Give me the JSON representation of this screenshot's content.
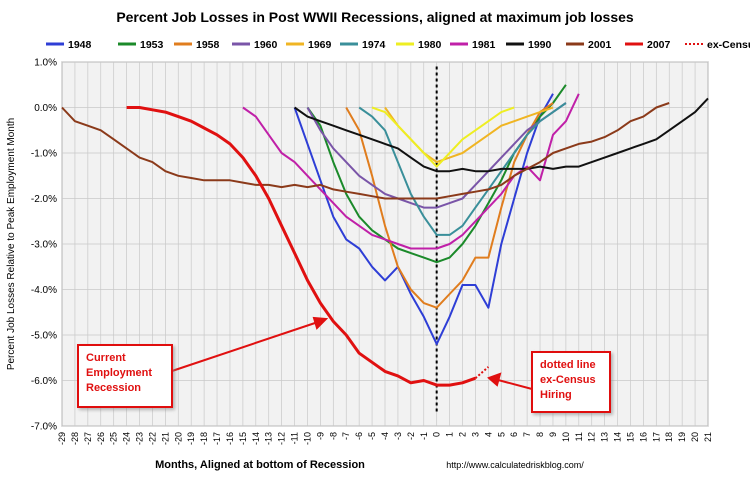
{
  "chart_data": {
    "type": "line",
    "title": "Percent Job Losses in Post WWII Recessions, aligned at maximum job losses",
    "xlabel": "Months, Aligned at bottom of Recession",
    "ylabel": "Percent Job Losses Relative to Peak Employment Month",
    "source": "http://www.calculatedriskblog.com/",
    "xlim": [
      -29,
      21
    ],
    "ylim": [
      -7.0,
      1.0
    ],
    "x_ticks": [
      -29,
      -28,
      -27,
      -26,
      -25,
      -24,
      -23,
      -22,
      -21,
      -20,
      -19,
      -18,
      -17,
      -16,
      -15,
      -14,
      -13,
      -12,
      -11,
      -10,
      -9,
      -8,
      -7,
      -6,
      -5,
      -4,
      -3,
      -2,
      -1,
      0,
      1,
      2,
      3,
      4,
      5,
      6,
      7,
      8,
      9,
      10,
      11,
      12,
      13,
      14,
      15,
      16,
      17,
      18,
      19,
      20,
      21
    ],
    "y_ticks": [
      "1.0%",
      "0.0%",
      "-1.0%",
      "-2.0%",
      "-3.0%",
      "-4.0%",
      "-5.0%",
      "-6.0%",
      "-7.0%"
    ],
    "grid": true,
    "legend_position": "top",
    "reference_line_x": 0,
    "series": [
      {
        "name": "1948",
        "color": "#2e3ed6",
        "x": [
          -11,
          -10,
          -9,
          -8,
          -7,
          -6,
          -5,
          -4,
          -3,
          -2,
          -1,
          0,
          1,
          2,
          3,
          4,
          5,
          6,
          7,
          8,
          9
        ],
        "y": [
          0,
          -0.8,
          -1.6,
          -2.4,
          -2.9,
          -3.1,
          -3.5,
          -3.8,
          -3.5,
          -4.1,
          -4.6,
          -5.2,
          -4.6,
          -3.9,
          -3.9,
          -4.4,
          -3.0,
          -2.0,
          -1.0,
          -0.2,
          0.3
        ]
      },
      {
        "name": "1953",
        "color": "#1b8a2a",
        "x": [
          -10,
          -9,
          -8,
          -7,
          -6,
          -5,
          -4,
          -3,
          -2,
          -1,
          0,
          1,
          2,
          3,
          4,
          5,
          6,
          7,
          8,
          9,
          10
        ],
        "y": [
          0,
          -0.4,
          -1.2,
          -1.9,
          -2.4,
          -2.7,
          -2.9,
          -3.1,
          -3.2,
          -3.3,
          -3.4,
          -3.3,
          -3.0,
          -2.6,
          -2.1,
          -1.6,
          -1.0,
          -0.6,
          -0.2,
          0.1,
          0.5
        ]
      },
      {
        "name": "1958",
        "color": "#e07d1e",
        "x": [
          -7,
          -6,
          -5,
          -4,
          -3,
          -2,
          -1,
          0,
          1,
          2,
          3,
          4,
          5,
          6,
          7,
          8,
          9
        ],
        "y": [
          0,
          -0.5,
          -1.5,
          -2.6,
          -3.5,
          -4.0,
          -4.3,
          -4.4,
          -4.1,
          -3.8,
          -3.3,
          -3.3,
          -2.2,
          -1.2,
          -0.6,
          -0.1,
          0.1
        ]
      },
      {
        "name": "1960",
        "color": "#7a55a8",
        "x": [
          -10,
          -9,
          -8,
          -7,
          -6,
          -5,
          -4,
          -3,
          -2,
          -1,
          0,
          1,
          2,
          3,
          4,
          5,
          6,
          7,
          8,
          9,
          10
        ],
        "y": [
          0,
          -0.5,
          -0.9,
          -1.2,
          -1.5,
          -1.7,
          -1.9,
          -2.0,
          -2.1,
          -2.2,
          -2.2,
          -2.1,
          -2.0,
          -1.7,
          -1.4,
          -1.1,
          -0.8,
          -0.5,
          -0.3,
          -0.1,
          0.1
        ]
      },
      {
        "name": "1969",
        "color": "#f0b523",
        "x": [
          -4,
          -3,
          -2,
          -1,
          0,
          1,
          2,
          3,
          4,
          5,
          6,
          7,
          8,
          9
        ],
        "y": [
          0,
          -0.4,
          -0.7,
          -1.0,
          -1.2,
          -1.1,
          -1.0,
          -0.8,
          -0.6,
          -0.4,
          -0.3,
          -0.2,
          -0.1,
          0.0
        ]
      },
      {
        "name": "1974",
        "color": "#3a8f9a",
        "x": [
          -6,
          -5,
          -4,
          -3,
          -2,
          -1,
          0,
          1,
          2,
          3,
          4,
          5,
          6,
          7,
          8,
          9,
          10
        ],
        "y": [
          0,
          -0.2,
          -0.5,
          -1.2,
          -1.9,
          -2.4,
          -2.8,
          -2.8,
          -2.6,
          -2.2,
          -1.8,
          -1.4,
          -1.0,
          -0.6,
          -0.3,
          -0.1,
          0.1
        ]
      },
      {
        "name": "1980",
        "color": "#eeee22",
        "x": [
          -5,
          -4,
          -3,
          -2,
          -1,
          0,
          1,
          2,
          3,
          4,
          5,
          6
        ],
        "y": [
          0,
          -0.1,
          -0.4,
          -0.7,
          -1.0,
          -1.3,
          -1.0,
          -0.7,
          -0.5,
          -0.3,
          -0.1,
          0.0
        ]
      },
      {
        "name": "1981",
        "color": "#c020a8",
        "x": [
          -15,
          -14,
          -13,
          -12,
          -11,
          -10,
          -9,
          -8,
          -7,
          -6,
          -5,
          -4,
          -3,
          -2,
          -1,
          0,
          1,
          2,
          3,
          4,
          5,
          6,
          7,
          8,
          9,
          10,
          11
        ],
        "y": [
          0,
          -0.2,
          -0.6,
          -1.0,
          -1.2,
          -1.5,
          -1.8,
          -2.1,
          -2.4,
          -2.6,
          -2.8,
          -2.9,
          -3.0,
          -3.1,
          -3.1,
          -3.1,
          -3.0,
          -2.8,
          -2.5,
          -2.2,
          -1.9,
          -1.5,
          -1.3,
          -1.6,
          -0.6,
          -0.3,
          0.3
        ]
      },
      {
        "name": "1990",
        "color": "#111111",
        "x": [
          -11,
          -10,
          -9,
          -8,
          -7,
          -6,
          -5,
          -4,
          -3,
          -2,
          -1,
          0,
          1,
          2,
          3,
          4,
          5,
          6,
          7,
          8,
          9,
          10,
          11,
          12,
          13,
          14,
          15,
          16,
          17,
          18,
          19,
          20,
          21
        ],
        "y": [
          0,
          -0.2,
          -0.3,
          -0.4,
          -0.5,
          -0.6,
          -0.7,
          -0.8,
          -0.9,
          -1.1,
          -1.3,
          -1.4,
          -1.4,
          -1.35,
          -1.4,
          -1.4,
          -1.35,
          -1.35,
          -1.35,
          -1.3,
          -1.35,
          -1.3,
          -1.3,
          -1.2,
          -1.1,
          -1.0,
          -0.9,
          -0.8,
          -0.7,
          -0.5,
          -0.3,
          -0.1,
          0.2
        ]
      },
      {
        "name": "2001",
        "color": "#8b3a1a",
        "x": [
          -29,
          -28,
          -27,
          -26,
          -25,
          -24,
          -23,
          -22,
          -21,
          -20,
          -19,
          -18,
          -17,
          -16,
          -15,
          -14,
          -13,
          -12,
          -11,
          -10,
          -9,
          -8,
          -7,
          -6,
          -5,
          -4,
          -3,
          -2,
          -1,
          0,
          1,
          2,
          3,
          4,
          5,
          6,
          7,
          8,
          9,
          10,
          11,
          12,
          13,
          14,
          15,
          16,
          17,
          18
        ],
        "y": [
          0,
          -0.3,
          -0.4,
          -0.5,
          -0.7,
          -0.9,
          -1.1,
          -1.2,
          -1.4,
          -1.5,
          -1.55,
          -1.6,
          -1.6,
          -1.6,
          -1.65,
          -1.7,
          -1.7,
          -1.75,
          -1.7,
          -1.75,
          -1.7,
          -1.8,
          -1.85,
          -1.9,
          -1.95,
          -2.0,
          -2.0,
          -2.0,
          -2.0,
          -2.0,
          -1.95,
          -1.9,
          -1.85,
          -1.8,
          -1.7,
          -1.5,
          -1.35,
          -1.2,
          -1.0,
          -0.9,
          -0.8,
          -0.75,
          -0.65,
          -0.5,
          -0.3,
          -0.2,
          0.0,
          0.1
        ]
      },
      {
        "name": "2007",
        "color": "#e01010",
        "x": [
          -24,
          -23,
          -22,
          -21,
          -20,
          -19,
          -18,
          -17,
          -16,
          -15,
          -14,
          -13,
          -12,
          -11,
          -10,
          -9,
          -8,
          -7,
          -6,
          -5,
          -4,
          -3,
          -2,
          -1,
          0,
          1,
          2,
          3
        ],
        "y": [
          0,
          0,
          -0.05,
          -0.1,
          -0.2,
          -0.3,
          -0.45,
          -0.6,
          -0.8,
          -1.1,
          -1.5,
          -2.0,
          -2.6,
          -3.2,
          -3.8,
          -4.3,
          -4.7,
          -5.0,
          -5.4,
          -5.6,
          -5.8,
          -5.9,
          -6.05,
          -6.0,
          -6.1,
          -6.1,
          -6.05,
          -5.95
        ]
      },
      {
        "name": "ex-Census",
        "color": "#e01010",
        "dashed": true,
        "x": [
          3,
          4
        ],
        "y": [
          -5.95,
          -5.7
        ]
      }
    ],
    "annotations": [
      {
        "text": "Current Employment Recession"
      },
      {
        "text": "dotted line ex-Census Hiring"
      }
    ]
  }
}
